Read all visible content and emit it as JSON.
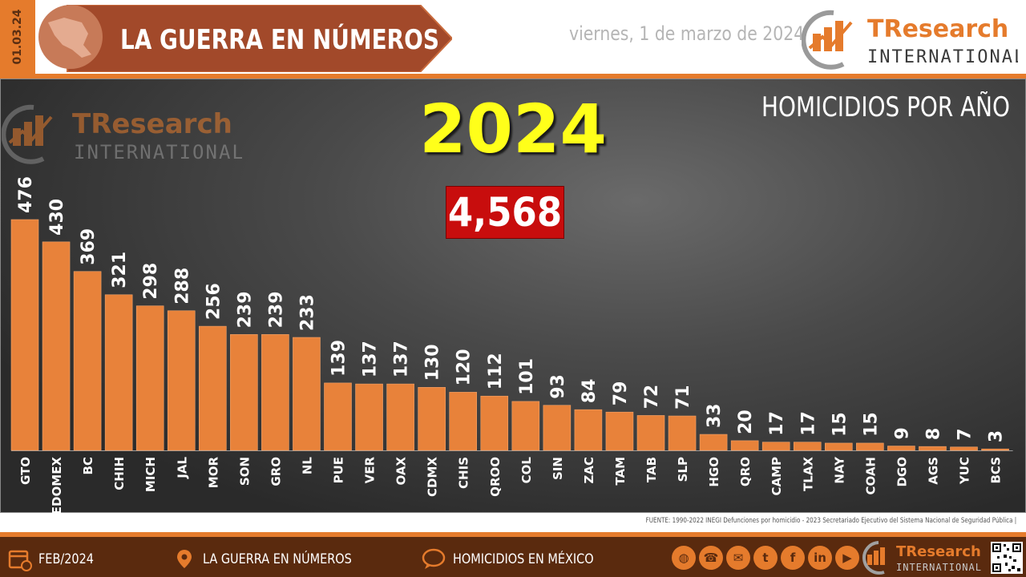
{
  "header": {
    "date_tab": "01.03.24",
    "banner_title": "LA GUERRA EN NÚMEROS",
    "date_text": "viernes, 1 de marzo de 2024",
    "logo_brand": "TResearch",
    "logo_sub": "INTERNATIONAL"
  },
  "chart_data": {
    "type": "bar",
    "title": "2024",
    "subtitle": "HOMICIDIOS POR AÑO",
    "total": "4,568",
    "categories": [
      "GTO",
      "EDOMEX",
      "BC",
      "CHIH",
      "MICH",
      "JAL",
      "MOR",
      "SON",
      "GRO",
      "NL",
      "PUE",
      "VER",
      "OAX",
      "CDMX",
      "CHIS",
      "QROO",
      "COL",
      "SIN",
      "ZAC",
      "TAM",
      "TAB",
      "SLP",
      "HGO",
      "QRO",
      "CAMP",
      "TLAX",
      "NAY",
      "COAH",
      "DGO",
      "AGS",
      "YUC",
      "BCS"
    ],
    "values": [
      476,
      430,
      369,
      321,
      298,
      288,
      256,
      239,
      239,
      233,
      139,
      137,
      137,
      130,
      120,
      112,
      101,
      93,
      84,
      79,
      72,
      71,
      33,
      20,
      17,
      17,
      15,
      15,
      9,
      8,
      7,
      3
    ],
    "ylim": [
      0,
      476
    ],
    "bar_color": "#e8823a",
    "grid": false
  },
  "source": "FUENTE: 1990-2022 INEGI Defunciones por homicidio - 2023 Secretariado Ejecutivo del Sistema Nacional de Seguridad Pública |",
  "footer": {
    "date": "FEB/2024",
    "section": "LA GUERRA EN NÚMEROS",
    "topic": "HOMICIDIOS EN MÉXICO",
    "social_icons": [
      "globe-icon",
      "phone-icon",
      "mail-icon",
      "twitter-icon",
      "facebook-icon",
      "linkedin-icon",
      "youtube-icon"
    ]
  },
  "colors": {
    "accent": "#e57b2c",
    "title_yellow": "#ffff1a",
    "total_red": "#c80d0d",
    "footer_brown": "#5a2a0e"
  }
}
